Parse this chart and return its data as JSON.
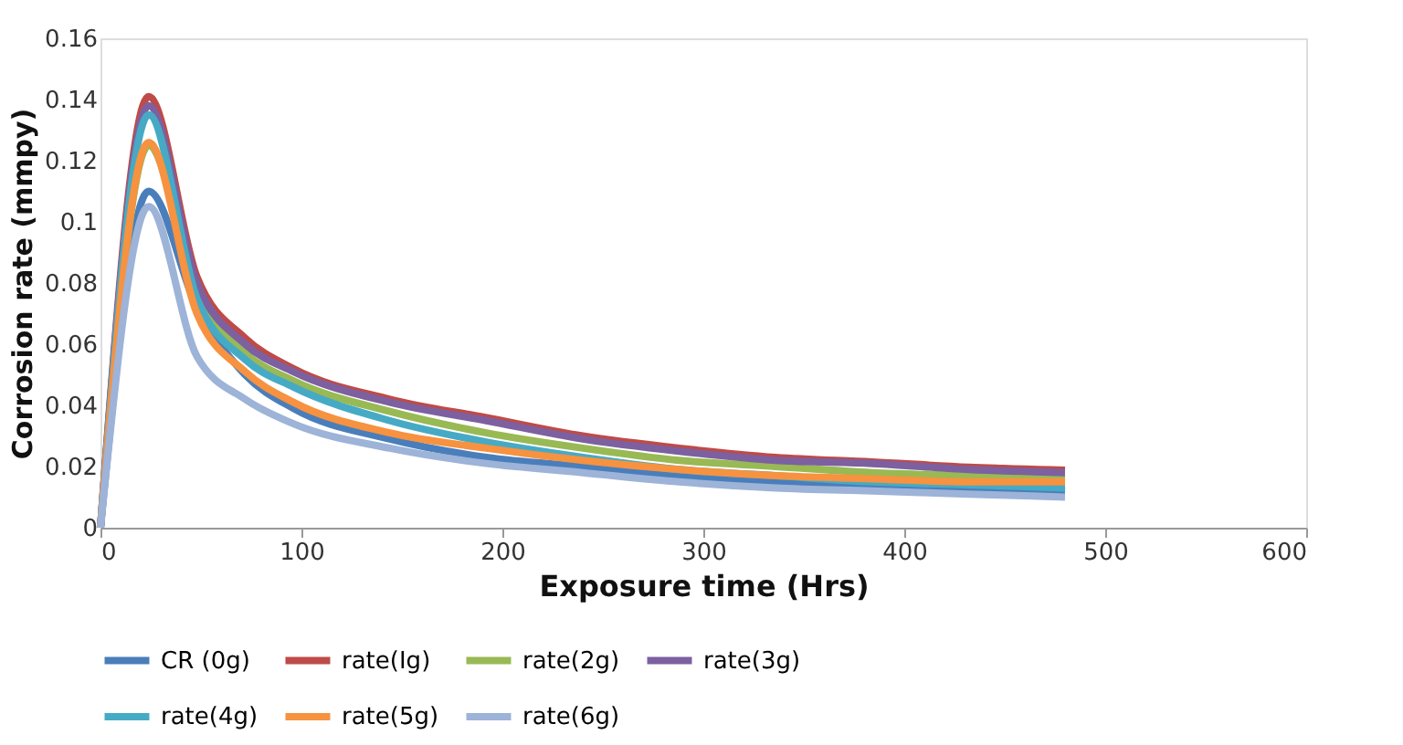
{
  "chart_data": {
    "type": "line",
    "xlabel": "Exposure time (Hrs)",
    "ylabel": "Corrosion rate (mmpy)",
    "x": [
      0,
      24,
      48,
      72,
      96,
      144,
      192,
      240,
      288,
      336,
      384,
      432,
      480
    ],
    "xlim": [
      0,
      600
    ],
    "xticks": [
      0,
      100,
      200,
      300,
      400,
      500,
      600
    ],
    "ylim": [
      0,
      0.16
    ],
    "yticks": [
      0,
      0.02,
      0.04,
      0.06,
      0.08,
      0.1,
      0.12,
      0.14,
      0.16
    ],
    "grid": false,
    "legend": "bottom",
    "marker": "none",
    "line_style": "solid",
    "series": [
      {
        "name": "CR (0g)",
        "color": "#4a7ebb",
        "values": [
          0,
          0.11,
          0.072,
          0.05,
          0.039,
          0.029,
          0.023,
          0.02,
          0.017,
          0.015,
          0.014,
          0.013,
          0.012
        ]
      },
      {
        "name": "rate(Ig)",
        "color": "#be4b48",
        "values": [
          0,
          0.141,
          0.082,
          0.062,
          0.052,
          0.042,
          0.036,
          0.03,
          0.026,
          0.023,
          0.0215,
          0.0198,
          0.0188
        ]
      },
      {
        "name": "rate(2g)",
        "color": "#98b954",
        "values": [
          0,
          0.125,
          0.076,
          0.057,
          0.048,
          0.038,
          0.031,
          0.026,
          0.022,
          0.02,
          0.018,
          0.017,
          0.016
        ]
      },
      {
        "name": "rate(3g)",
        "color": "#7d60a0",
        "values": [
          0,
          0.138,
          0.08,
          0.06,
          0.051,
          0.041,
          0.035,
          0.029,
          0.025,
          0.022,
          0.021,
          0.019,
          0.018
        ]
      },
      {
        "name": "rate(4g)",
        "color": "#46aac5",
        "values": [
          0,
          0.135,
          0.075,
          0.055,
          0.046,
          0.035,
          0.028,
          0.023,
          0.019,
          0.017,
          0.015,
          0.014,
          0.013
        ]
      },
      {
        "name": "rate(5g)",
        "color": "#f69240",
        "values": [
          0,
          0.126,
          0.07,
          0.051,
          0.041,
          0.031,
          0.026,
          0.022,
          0.019,
          0.017,
          0.016,
          0.015,
          0.015
        ]
      },
      {
        "name": "rate(6g)",
        "color": "#9db3d8",
        "values": [
          0,
          0.105,
          0.056,
          0.042,
          0.034,
          0.026,
          0.021,
          0.018,
          0.015,
          0.013,
          0.012,
          0.011,
          0.01
        ]
      }
    ]
  }
}
